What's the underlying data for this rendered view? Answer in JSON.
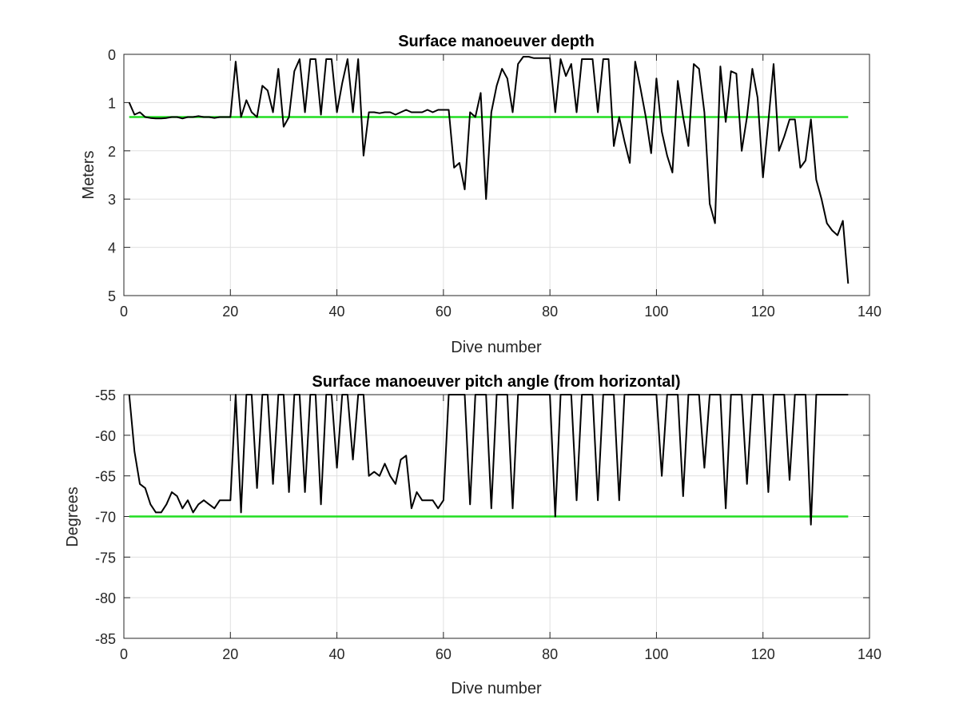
{
  "chart_data": [
    {
      "type": "line",
      "title": "Surface manoeuver depth",
      "xlabel": "Dive number",
      "ylabel": "Meters",
      "xlim": [
        0,
        140
      ],
      "ylim": [
        0,
        5
      ],
      "y_reversed": true,
      "grid": true,
      "xticks": [
        0,
        20,
        40,
        60,
        80,
        100,
        120,
        140
      ],
      "yticks": [
        0,
        1,
        2,
        3,
        4,
        5
      ],
      "xtick_labels": [
        "0",
        "20",
        "40",
        "60",
        "80",
        "100",
        "120",
        "140"
      ],
      "ytick_labels": [
        "0",
        "1",
        "2",
        "3",
        "4",
        "5"
      ],
      "reference_line": {
        "y": 1.3,
        "x_range": [
          1,
          136
        ],
        "color": "#22dd22"
      },
      "series": [
        {
          "color": "#000000",
          "x": [
            1,
            2,
            3,
            4,
            5,
            6,
            7,
            8,
            9,
            10,
            11,
            12,
            13,
            14,
            15,
            16,
            17,
            18,
            19,
            20,
            21,
            22,
            23,
            24,
            25,
            26,
            27,
            28,
            29,
            30,
            31,
            32,
            33,
            34,
            35,
            36,
            37,
            38,
            39,
            40,
            41,
            42,
            43,
            44,
            45,
            46,
            47,
            48,
            49,
            50,
            51,
            52,
            53,
            54,
            55,
            56,
            57,
            58,
            59,
            60,
            61,
            62,
            63,
            64,
            65,
            66,
            67,
            68,
            69,
            70,
            71,
            72,
            73,
            74,
            75,
            76,
            77,
            78,
            79,
            80,
            81,
            82,
            83,
            84,
            85,
            86,
            87,
            88,
            89,
            90,
            91,
            92,
            93,
            94,
            95,
            96,
            97,
            98,
            99,
            100,
            101,
            102,
            103,
            104,
            105,
            106,
            107,
            108,
            109,
            110,
            111,
            112,
            113,
            114,
            115,
            116,
            117,
            118,
            119,
            120,
            121,
            122,
            123,
            124,
            125,
            126,
            127,
            128,
            129,
            130,
            131,
            132,
            133,
            134,
            135,
            136
          ],
          "y": [
            1.0,
            1.25,
            1.2,
            1.3,
            1.32,
            1.33,
            1.33,
            1.32,
            1.3,
            1.3,
            1.33,
            1.3,
            1.3,
            1.28,
            1.3,
            1.3,
            1.32,
            1.3,
            1.3,
            1.3,
            0.15,
            1.3,
            0.95,
            1.2,
            1.3,
            0.65,
            0.75,
            1.2,
            0.3,
            1.5,
            1.3,
            0.35,
            0.1,
            1.2,
            0.1,
            0.1,
            1.25,
            0.1,
            0.1,
            1.2,
            0.6,
            0.1,
            1.2,
            0.1,
            2.1,
            1.2,
            1.2,
            1.22,
            1.2,
            1.2,
            1.25,
            1.2,
            1.15,
            1.2,
            1.2,
            1.2,
            1.15,
            1.2,
            1.15,
            1.15,
            1.15,
            2.35,
            2.25,
            2.8,
            1.2,
            1.3,
            0.8,
            3.0,
            1.2,
            0.65,
            0.3,
            0.5,
            1.2,
            0.2,
            0.05,
            0.05,
            0.08,
            0.08,
            0.08,
            0.08,
            1.2,
            0.1,
            0.45,
            0.2,
            1.2,
            0.1,
            0.1,
            0.1,
            1.2,
            0.1,
            0.1,
            1.9,
            1.3,
            1.8,
            2.25,
            0.15,
            0.7,
            1.3,
            2.05,
            0.5,
            1.6,
            2.1,
            2.45,
            0.55,
            1.3,
            1.9,
            0.2,
            0.3,
            1.2,
            3.1,
            3.5,
            0.25,
            1.4,
            0.35,
            0.4,
            2.0,
            1.3,
            0.3,
            0.9,
            2.55,
            1.4,
            0.2,
            2.0,
            1.7,
            1.35,
            1.35,
            2.35,
            2.2,
            1.35,
            2.6,
            3.0,
            3.5,
            3.65,
            3.75,
            3.45,
            4.75
          ]
        }
      ]
    },
    {
      "type": "line",
      "title": "Surface manoeuver pitch angle (from horizontal)",
      "xlabel": "Dive number",
      "ylabel": "Degrees",
      "xlim": [
        0,
        140
      ],
      "ylim": [
        -85,
        -55
      ],
      "grid": true,
      "xticks": [
        0,
        20,
        40,
        60,
        80,
        100,
        120,
        140
      ],
      "yticks": [
        -55,
        -60,
        -65,
        -70,
        -75,
        -80,
        -85
      ],
      "xtick_labels": [
        "0",
        "20",
        "40",
        "60",
        "80",
        "100",
        "120",
        "140"
      ],
      "ytick_labels": [
        "-55",
        "-60",
        "-65",
        "-70",
        "-75",
        "-80",
        "-85"
      ],
      "reference_line": {
        "y": -70,
        "x_range": [
          1,
          136
        ],
        "color": "#22dd22"
      },
      "series": [
        {
          "color": "#000000",
          "x": [
            1,
            2,
            3,
            4,
            5,
            6,
            7,
            8,
            9,
            10,
            11,
            12,
            13,
            14,
            15,
            16,
            17,
            18,
            19,
            20,
            21,
            22,
            23,
            24,
            25,
            26,
            27,
            28,
            29,
            30,
            31,
            32,
            33,
            34,
            35,
            36,
            37,
            38,
            39,
            40,
            41,
            42,
            43,
            44,
            45,
            46,
            47,
            48,
            49,
            50,
            51,
            52,
            53,
            54,
            55,
            56,
            57,
            58,
            59,
            60,
            61,
            62,
            63,
            64,
            65,
            66,
            67,
            68,
            69,
            70,
            71,
            72,
            73,
            74,
            75,
            76,
            77,
            78,
            79,
            80,
            81,
            82,
            83,
            84,
            85,
            86,
            87,
            88,
            89,
            90,
            91,
            92,
            93,
            94,
            95,
            96,
            97,
            98,
            99,
            100,
            101,
            102,
            103,
            104,
            105,
            106,
            107,
            108,
            109,
            110,
            111,
            112,
            113,
            114,
            115,
            116,
            117,
            118,
            119,
            120,
            121,
            122,
            123,
            124,
            125,
            126,
            127,
            128,
            129,
            130,
            131,
            132,
            133,
            134,
            135,
            136
          ],
          "y": [
            -55,
            -62,
            -66,
            -66.5,
            -68.5,
            -69.5,
            -69.5,
            -68.5,
            -67,
            -67.5,
            -69,
            -68,
            -69.5,
            -68.5,
            -68,
            -68.5,
            -69,
            -68,
            -68,
            -68,
            -55,
            -69.5,
            -55,
            -55,
            -66.5,
            -55,
            -55,
            -66,
            -55,
            -55,
            -67,
            -55,
            -55,
            -67,
            -55,
            -55,
            -68.5,
            -55,
            -55,
            -64,
            -55,
            -55,
            -63,
            -55,
            -55,
            -65,
            -64.5,
            -65,
            -63.5,
            -65,
            -66,
            -63,
            -62.5,
            -69,
            -67,
            -68,
            -68,
            -68,
            -69,
            -68,
            -55,
            -55,
            -55,
            -55,
            -68.5,
            -55,
            -55,
            -55,
            -69,
            -55,
            -55,
            -55,
            -69,
            -55,
            -55,
            -55,
            -55,
            -55,
            -55,
            -55,
            -70,
            -55,
            -55,
            -55,
            -68,
            -55,
            -55,
            -55,
            -68,
            -55,
            -55,
            -55,
            -68,
            -55,
            -55,
            -55,
            -55,
            -55,
            -55,
            -55,
            -65,
            -55,
            -55,
            -55,
            -67.5,
            -55,
            -55,
            -55,
            -64,
            -55,
            -55,
            -55,
            -69,
            -55,
            -55,
            -55,
            -66,
            -55,
            -55,
            -55,
            -67,
            -55,
            -55,
            -55,
            -65.5,
            -55,
            -55,
            -55,
            -71,
            -55,
            -55,
            -55,
            -55,
            -55,
            -55,
            -55
          ]
        }
      ]
    }
  ]
}
